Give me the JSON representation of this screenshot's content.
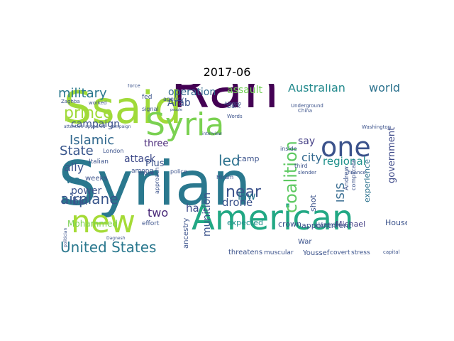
{
  "title": "2017-06",
  "palette": {
    "dark": "#440154",
    "teal": "#21918c",
    "blue": "#3b528b",
    "green": "#5ec962",
    "yellow": "#b5de2b",
    "navy": "#31688e",
    "sea": "#2a9d8f"
  },
  "words": [
    {
      "text": "Syrian",
      "color": "#2a788e"
    },
    {
      "text": "Ran",
      "color": "#440154"
    },
    {
      "text": "Ssaid",
      "color": "#a0da39"
    },
    {
      "text": "American",
      "color": "#22a884"
    },
    {
      "text": "new",
      "color": "#a5db36"
    },
    {
      "text": "Syria",
      "color": "#7ad151"
    },
    {
      "text": "one",
      "color": "#3b528b"
    },
    {
      "text": "United States",
      "color": "#2a788e"
    },
    {
      "text": "Islamic",
      "color": "#31688e"
    },
    {
      "text": "State",
      "color": "#39568c"
    },
    {
      "text": "prince",
      "color": "#a0da39"
    },
    {
      "text": "military",
      "color": "#2a788e"
    },
    {
      "text": "campaign",
      "color": "#3b528b"
    },
    {
      "text": "three",
      "color": "#482878"
    },
    {
      "text": "attack",
      "color": "#3e4a89"
    },
    {
      "text": "operation",
      "color": "#31688e"
    },
    {
      "text": "assault",
      "color": "#73d056"
    },
    {
      "text": "Australian",
      "color": "#238a8d"
    },
    {
      "text": "world",
      "color": "#2c728e"
    },
    {
      "text": "Arab",
      "color": "#3b528b"
    },
    {
      "text": "led",
      "color": "#2c728e"
    },
    {
      "text": "near",
      "color": "#3b528b"
    },
    {
      "text": "coalition",
      "color": "#5ec962"
    },
    {
      "text": "city",
      "color": "#31688e"
    },
    {
      "text": "say",
      "color": "#433e85"
    },
    {
      "text": "regional",
      "color": "#21918c"
    },
    {
      "text": "government",
      "color": "#3e4a89"
    },
    {
      "text": "airplane",
      "color": "#39568c"
    },
    {
      "text": "ally",
      "color": "#3b528b"
    },
    {
      "text": "wa",
      "color": "#2c728e"
    },
    {
      "text": "power",
      "color": "#3b528b"
    },
    {
      "text": "bin",
      "color": "#3b528b"
    },
    {
      "text": "two",
      "color": "#482878"
    },
    {
      "text": "ha",
      "color": "#3e4a89"
    },
    {
      "text": "munition",
      "color": "#3b528b"
    },
    {
      "text": "drone",
      "color": "#3b528b"
    },
    {
      "text": "law",
      "color": "#2a788e"
    },
    {
      "text": "ISIS",
      "color": "#31688e"
    },
    {
      "text": "Plus",
      "color": "#3b528b"
    },
    {
      "text": "expected",
      "color": "#21918c"
    },
    {
      "text": "shot",
      "color": "#3b528b"
    },
    {
      "text": "experience",
      "color": "#2c728e"
    },
    {
      "text": "crown",
      "color": "#3b528b"
    },
    {
      "text": "appointment",
      "color": "#3b528b"
    },
    {
      "text": "Michael",
      "color": "#433e85"
    },
    {
      "text": "House",
      "color": "#3b528b"
    },
    {
      "text": "War",
      "color": "#3b528b"
    },
    {
      "text": "threatens",
      "color": "#3b528b"
    },
    {
      "text": "muscular",
      "color": "#3b528b"
    },
    {
      "text": "Youssef",
      "color": "#3b528b"
    },
    {
      "text": "covert",
      "color": "#3b528b"
    },
    {
      "text": "stress",
      "color": "#3b528b"
    },
    {
      "text": "ancestry",
      "color": "#3b528b"
    },
    {
      "text": "Mohammed",
      "color": "#7ad151"
    },
    {
      "text": "weeks",
      "color": "#3b528b"
    },
    {
      "text": "Italian",
      "color": "#3b528b"
    },
    {
      "text": "London",
      "color": "#3b528b"
    },
    {
      "text": "among",
      "color": "#3b528b"
    },
    {
      "text": "move",
      "color": "#3b528b"
    },
    {
      "text": "police",
      "color": "#3b528b"
    },
    {
      "text": "effort",
      "color": "#3b528b"
    },
    {
      "text": "agency",
      "color": "#3b528b"
    },
    {
      "text": "signal",
      "color": "#3b528b"
    },
    {
      "text": "fed",
      "color": "#3b528b"
    },
    {
      "text": "force",
      "color": "#3b528b"
    },
    {
      "text": "Zaghba",
      "color": "#3b528b"
    },
    {
      "text": "worked",
      "color": "#3b528b"
    },
    {
      "text": "Dark",
      "color": "#3b528b"
    },
    {
      "text": "Aleppo",
      "color": "#3b528b"
    },
    {
      "text": "Words",
      "color": "#3b528b"
    },
    {
      "text": "China",
      "color": "#3b528b"
    },
    {
      "text": "Washington",
      "color": "#3b528b"
    },
    {
      "text": "Underground",
      "color": "#3b528b"
    },
    {
      "text": "camp",
      "color": "#3b528b"
    },
    {
      "text": "Hiram",
      "color": "#3b528b"
    },
    {
      "text": "inside",
      "color": "#3b528b"
    },
    {
      "text": "third",
      "color": "#3b528b"
    },
    {
      "text": "Andrew",
      "color": "#3b528b"
    },
    {
      "text": "complicate",
      "color": "#3b528b"
    },
    {
      "text": "Hazard",
      "color": "#3b528b"
    },
    {
      "text": "Dagnesh",
      "color": "#3b528b"
    },
    {
      "text": "approach",
      "color": "#3b528b"
    },
    {
      "text": "interview",
      "color": "#3b528b"
    },
    {
      "text": "campaign",
      "color": "#3b528b"
    },
    {
      "text": "capital",
      "color": "#3b528b"
    },
    {
      "text": "slender",
      "color": "#3b528b"
    },
    {
      "text": "people",
      "color": "#3b528b"
    },
    {
      "text": "politician",
      "color": "#3b528b"
    },
    {
      "text": "attention",
      "color": "#3b528b"
    },
    {
      "text": "appeared",
      "color": "#3b528b"
    },
    {
      "text": "finance",
      "color": "#3b528b"
    }
  ]
}
